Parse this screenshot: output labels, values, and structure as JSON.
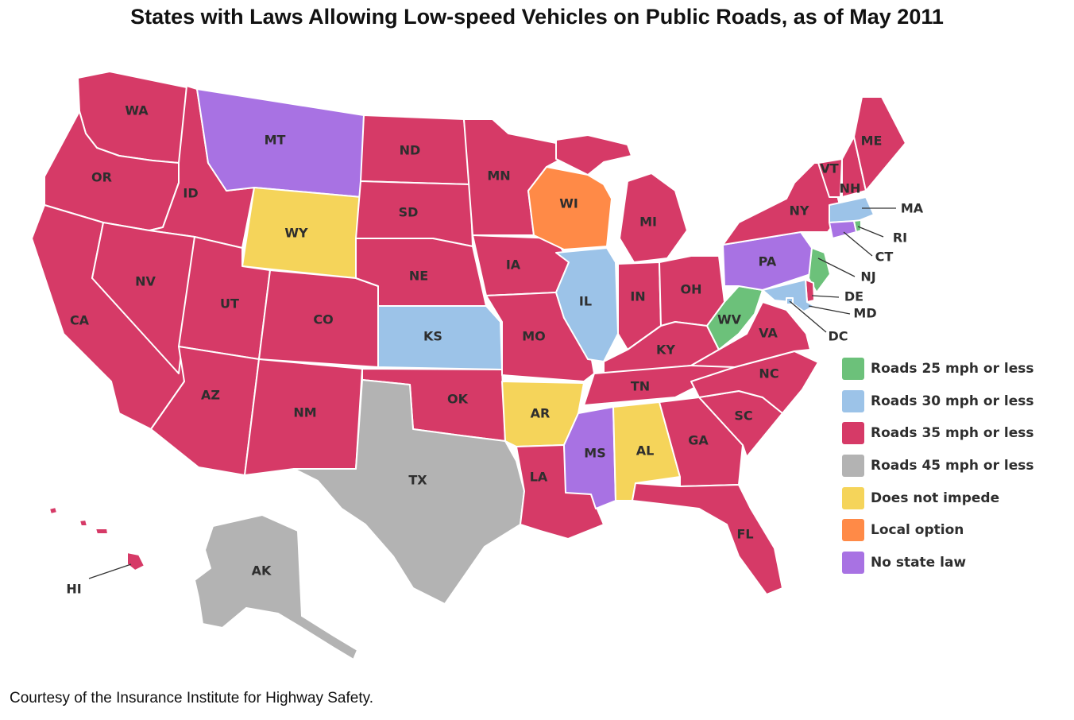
{
  "title": "States with Laws Allowing Low-speed Vehicles on Public Roads, as of May 2011",
  "credit": "Courtesy of the Insurance Institute for Highway Safety.",
  "legend": [
    {
      "key": "lt25",
      "label": "Roads 25 mph or less",
      "color": "#6cc17a"
    },
    {
      "key": "lt30",
      "label": "Roads 30 mph or less",
      "color": "#9cc3e8"
    },
    {
      "key": "lt35",
      "label": "Roads 35 mph or less",
      "color": "#d63a67"
    },
    {
      "key": "lt45",
      "label": "Roads 45 mph or less",
      "color": "#b3b3b3"
    },
    {
      "key": "noimpede",
      "label": "Does not impede",
      "color": "#f5d45a"
    },
    {
      "key": "local",
      "label": "Local option",
      "color": "#ff8a47"
    },
    {
      "key": "nolaw",
      "label": "No state law",
      "color": "#a872e3"
    }
  ],
  "states": {
    "WA": "lt35",
    "OR": "lt35",
    "CA": "lt35",
    "ID": "lt35",
    "NV": "lt35",
    "MT": "nolaw",
    "WY": "noimpede",
    "UT": "lt35",
    "AZ": "lt35",
    "CO": "lt35",
    "NM": "lt35",
    "ND": "lt35",
    "SD": "lt35",
    "NE": "lt35",
    "KS": "lt30",
    "OK": "lt35",
    "TX": "lt45",
    "MN": "lt35",
    "IA": "lt35",
    "MO": "lt35",
    "AR": "noimpede",
    "LA": "lt35",
    "WI": "local",
    "IL": "lt30",
    "MI": "lt35",
    "IN": "lt35",
    "OH": "lt35",
    "KY": "lt35",
    "TN": "lt35",
    "MS": "nolaw",
    "AL": "noimpede",
    "GA": "lt35",
    "FL": "lt35",
    "SC": "lt35",
    "NC": "lt35",
    "VA": "lt35",
    "WV": "lt25",
    "PA": "nolaw",
    "NY": "lt35",
    "VT": "lt35",
    "NH": "lt35",
    "ME": "lt35",
    "MA": "lt30",
    "RI": "lt25",
    "CT": "nolaw",
    "NJ": "lt25",
    "DE": "lt35",
    "MD": "lt30",
    "DC": "lt30",
    "AK": "lt45",
    "HI": "lt35"
  }
}
